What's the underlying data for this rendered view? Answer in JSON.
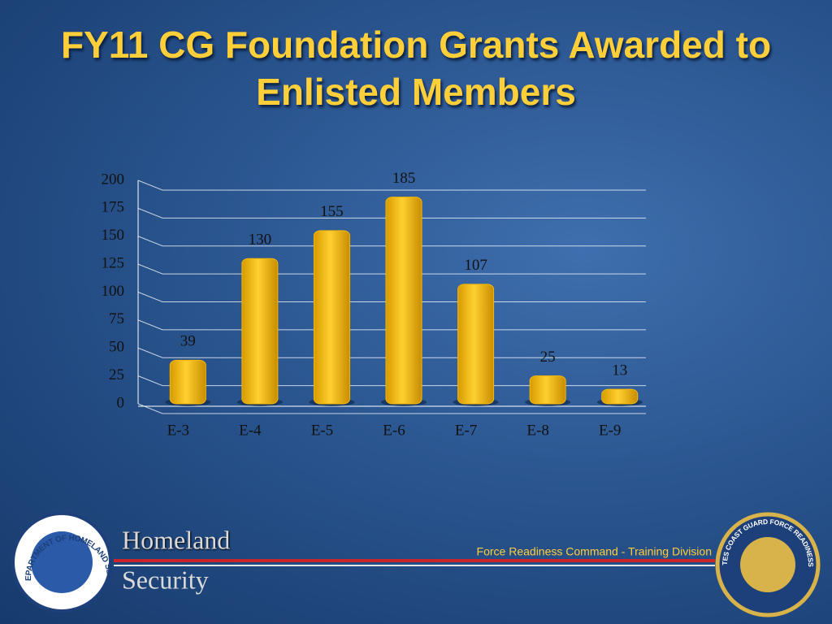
{
  "chart_data": {
    "type": "bar",
    "title": "FY11 CG Foundation Grants Awarded to Enlisted Members",
    "categories": [
      "E-3",
      "E-4",
      "E-5",
      "E-6",
      "E-7",
      "E-8",
      "E-9"
    ],
    "values": [
      39,
      130,
      155,
      185,
      107,
      25,
      13
    ],
    "color": "#f6b800",
    "ylim": [
      0,
      200
    ],
    "yticks": [
      0,
      25,
      50,
      75,
      100,
      125,
      150,
      175,
      200
    ],
    "grid": true
  },
  "footer": {
    "agency_line1": "Homeland",
    "agency_line2": "Security",
    "division": "Force Readiness Command - Training Division",
    "left_seal": "U.S. DEPARTMENT OF HOMELAND SECURITY",
    "right_seal": "UNITED STATES COAST GUARD FORCE READINESS COMMAND"
  }
}
